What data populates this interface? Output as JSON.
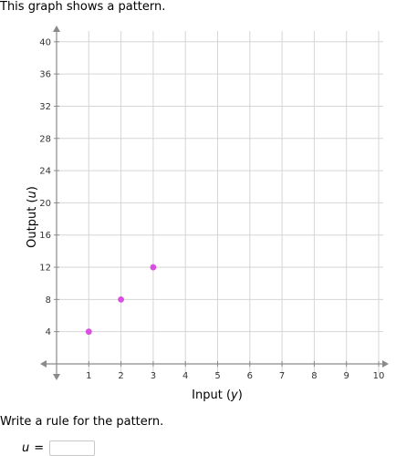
{
  "prompt": "This graph shows a pattern.",
  "question": "Write a rule for the pattern.",
  "answer": {
    "variable": "u",
    "equals": "=",
    "value": ""
  },
  "chart_data": {
    "type": "scatter",
    "xlabel_text": "Input (",
    "xlabel_var": "y",
    "xlabel_close": ")",
    "ylabel_text": "Output (",
    "ylabel_var": "u",
    "ylabel_close": ")",
    "xlim": [
      0,
      10
    ],
    "ylim": [
      0,
      40
    ],
    "x_ticks": [
      1,
      2,
      3,
      4,
      5,
      6,
      7,
      8,
      9,
      10
    ],
    "y_ticks": [
      4,
      8,
      12,
      16,
      20,
      24,
      28,
      32,
      36,
      40
    ],
    "points": [
      {
        "x": 1,
        "y": 4
      },
      {
        "x": 2,
        "y": 8
      },
      {
        "x": 3,
        "y": 12
      }
    ],
    "grid": true,
    "point_color": "#d94fe0",
    "grid_color": "#d6d6d6",
    "axis_color": "#8a8a8a"
  }
}
